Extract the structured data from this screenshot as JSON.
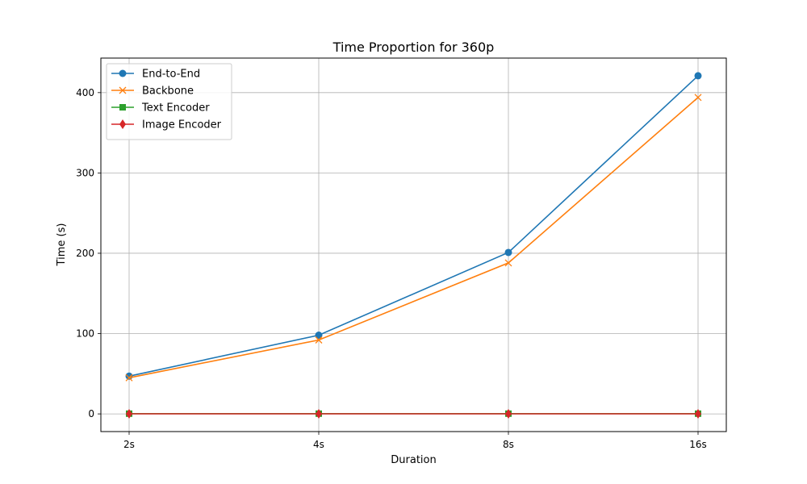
{
  "chart_data": {
    "type": "line",
    "title": "Time Proportion for 360p",
    "xlabel": "Duration",
    "ylabel": "Time (s)",
    "categories": [
      "2s",
      "4s",
      "8s",
      "16s"
    ],
    "ylim": [
      -22,
      443
    ],
    "yticks": [
      0,
      100,
      200,
      300,
      400
    ],
    "grid": true,
    "legend_position": "top-left",
    "series": [
      {
        "name": "End-to-End",
        "values": [
          47,
          98,
          201,
          421
        ],
        "color": "#1f77b4",
        "marker": "circle"
      },
      {
        "name": "Backbone",
        "values": [
          45,
          92,
          188,
          394
        ],
        "color": "#ff7f0e",
        "marker": "x"
      },
      {
        "name": "Text Encoder",
        "values": [
          0.3,
          0.3,
          0.3,
          0.3
        ],
        "color": "#2ca02c",
        "marker": "square"
      },
      {
        "name": "Image Encoder",
        "values": [
          0.1,
          0.1,
          0.1,
          0.1
        ],
        "color": "#d62728",
        "marker": "diamond"
      }
    ]
  }
}
